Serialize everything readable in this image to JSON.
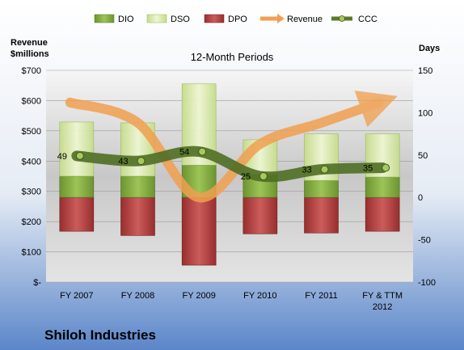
{
  "company": "Shiloh Industries",
  "legend": {
    "dio": "DIO",
    "dso": "DSO",
    "dpo": "DPO",
    "revenue": "Revenue",
    "ccc": "CCC"
  },
  "colors": {
    "dio": "#7ea83a",
    "dso": "#d7e8a8",
    "dpo": "#b03a3a",
    "revenue": "#f0a050",
    "ccc": "#5a7a28",
    "bg_top": "#ffffff",
    "bg_bottom": "#5b86c9"
  },
  "chart_data": {
    "type": "bar",
    "title": "12-Month Periods",
    "categories": [
      "FY 2007",
      "FY 2008",
      "FY 2009",
      "FY 2010",
      "FY 2011",
      "FY & TTM 2012"
    ],
    "left_axis": {
      "label_line1": "Revenue",
      "label_line2": "$millions",
      "ticks": [
        "$-",
        "$100",
        "$200",
        "$300",
        "$400",
        "$500",
        "$600",
        "$700"
      ]
    },
    "right_axis": {
      "label": "Days",
      "min": -100,
      "max": 150,
      "ticks": [
        "-100",
        "-50",
        "0",
        "50",
        "100",
        "150"
      ]
    },
    "series": [
      {
        "name": "DPO",
        "stack": "below",
        "values": [
          -40,
          -45,
          -80,
          -43,
          -42,
          -40
        ]
      },
      {
        "name": "DIO",
        "stack": "above",
        "values": [
          25,
          25,
          38,
          27,
          20,
          24
        ]
      },
      {
        "name": "DSO",
        "stack": "above",
        "values": [
          64,
          63,
          96,
          41,
          55,
          51
        ]
      },
      {
        "name": "Revenue",
        "type": "line",
        "values": [
          112,
          88,
          0,
          63,
          88,
          112
        ]
      },
      {
        "name": "CCC",
        "type": "line",
        "values": [
          49,
          43,
          54,
          25,
          33,
          35
        ]
      }
    ],
    "ccc_labels": [
      "49",
      "43",
      "54",
      "25",
      "33",
      "35"
    ]
  }
}
